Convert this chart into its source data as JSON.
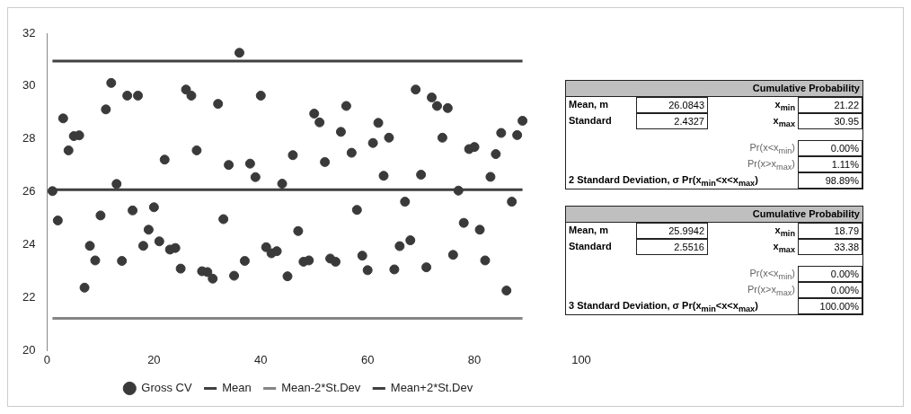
{
  "chart_data": {
    "type": "scatter",
    "x": [
      1,
      2,
      3,
      4,
      5,
      6,
      7,
      8,
      9,
      10,
      11,
      12,
      13,
      14,
      15,
      16,
      17,
      18,
      19,
      20,
      21,
      22,
      23,
      24,
      25,
      26,
      27,
      28,
      29,
      30,
      31,
      32,
      33,
      34,
      35,
      36,
      37,
      38,
      39,
      40,
      41,
      42,
      43,
      44,
      45,
      46,
      47,
      48,
      49,
      50,
      51,
      52,
      53,
      54,
      55,
      56,
      57,
      58,
      59,
      60,
      61,
      62,
      63,
      64,
      65,
      66,
      67,
      68,
      69,
      70,
      71,
      72,
      73,
      74,
      75,
      76,
      77,
      78,
      79,
      80,
      81,
      82,
      83,
      84,
      85,
      86,
      87,
      88,
      89
    ],
    "series": [
      {
        "name": "Gross CV",
        "marker": "circle",
        "color": "#3a3a3a",
        "values": [
          26.03,
          24.92,
          28.78,
          27.57,
          28.11,
          28.14,
          22.38,
          23.96,
          23.41,
          25.11,
          29.12,
          30.12,
          26.3,
          23.39,
          29.64,
          25.3,
          29.64,
          23.96,
          24.57,
          25.42,
          24.13,
          27.22,
          23.82,
          23.88,
          23.1,
          29.87,
          29.64,
          27.57,
          23.0,
          22.97,
          22.72,
          29.33,
          24.97,
          27.02,
          22.83,
          31.26,
          23.39,
          27.07,
          26.56,
          29.64,
          23.91,
          23.68,
          23.76,
          26.31,
          22.81,
          27.39,
          24.52,
          23.36,
          23.41,
          28.96,
          28.63,
          27.13,
          23.48,
          23.36,
          28.27,
          29.25,
          27.48,
          25.32,
          23.59,
          23.04,
          27.85,
          28.61,
          26.61,
          28.05,
          23.07,
          23.95,
          25.63,
          24.17,
          29.87,
          26.65,
          23.15,
          29.57,
          29.25,
          28.05,
          29.17,
          23.62,
          26.05,
          24.83,
          27.62,
          27.7,
          24.57,
          23.41,
          26.57,
          27.43,
          28.23,
          22.27,
          25.63,
          28.15,
          28.69
        ]
      },
      {
        "name": "Mean",
        "type": "line",
        "marker": "none",
        "color": "#404040",
        "values": [
          26.0843,
          26.0843,
          26.0843,
          26.0843,
          26.0843,
          26.0843,
          26.0843,
          26.0843,
          26.0843,
          26.0843,
          26.0843,
          26.0843,
          26.0843,
          26.0843,
          26.0843,
          26.0843,
          26.0843,
          26.0843,
          26.0843,
          26.0843,
          26.0843,
          26.0843,
          26.0843,
          26.0843,
          26.0843,
          26.0843,
          26.0843,
          26.0843,
          26.0843,
          26.0843,
          26.0843,
          26.0843,
          26.0843,
          26.0843,
          26.0843,
          26.0843,
          26.0843,
          26.0843,
          26.0843,
          26.0843,
          26.0843,
          26.0843,
          26.0843,
          26.0843,
          26.0843,
          26.0843,
          26.0843,
          26.0843,
          26.0843,
          26.0843,
          26.0843,
          26.0843,
          26.0843,
          26.0843,
          26.0843,
          26.0843,
          26.0843,
          26.0843,
          26.0843,
          26.0843,
          26.0843,
          26.0843,
          26.0843,
          26.0843,
          26.0843,
          26.0843,
          26.0843,
          26.0843,
          26.0843,
          26.0843,
          26.0843,
          26.0843,
          26.0843,
          26.0843,
          26.0843,
          26.0843,
          26.0843,
          26.0843,
          26.0843,
          26.0843,
          26.0843,
          26.0843,
          26.0843,
          26.0843,
          26.0843,
          26.0843,
          26.0843,
          26.0843,
          26.0843
        ]
      },
      {
        "name": "Mean-2*St.Dev",
        "type": "line",
        "marker": "none",
        "color": "#858585",
        "values": [
          21.22,
          21.22,
          21.22,
          21.22,
          21.22,
          21.22,
          21.22,
          21.22,
          21.22,
          21.22,
          21.22,
          21.22,
          21.22,
          21.22,
          21.22,
          21.22,
          21.22,
          21.22,
          21.22,
          21.22,
          21.22,
          21.22,
          21.22,
          21.22,
          21.22,
          21.22,
          21.22,
          21.22,
          21.22,
          21.22,
          21.22,
          21.22,
          21.22,
          21.22,
          21.22,
          21.22,
          21.22,
          21.22,
          21.22,
          21.22,
          21.22,
          21.22,
          21.22,
          21.22,
          21.22,
          21.22,
          21.22,
          21.22,
          21.22,
          21.22,
          21.22,
          21.22,
          21.22,
          21.22,
          21.22,
          21.22,
          21.22,
          21.22,
          21.22,
          21.22,
          21.22,
          21.22,
          21.22,
          21.22,
          21.22,
          21.22,
          21.22,
          21.22,
          21.22,
          21.22,
          21.22,
          21.22,
          21.22,
          21.22,
          21.22,
          21.22,
          21.22,
          21.22,
          21.22,
          21.22,
          21.22,
          21.22,
          21.22,
          21.22,
          21.22,
          21.22,
          21.22,
          21.22,
          21.22
        ]
      },
      {
        "name": "Mean+2*St.Dev",
        "type": "line",
        "marker": "none",
        "color": "#404040",
        "values": [
          30.95,
          30.95,
          30.95,
          30.95,
          30.95,
          30.95,
          30.95,
          30.95,
          30.95,
          30.95,
          30.95,
          30.95,
          30.95,
          30.95,
          30.95,
          30.95,
          30.95,
          30.95,
          30.95,
          30.95,
          30.95,
          30.95,
          30.95,
          30.95,
          30.95,
          30.95,
          30.95,
          30.95,
          30.95,
          30.95,
          30.95,
          30.95,
          30.95,
          30.95,
          30.95,
          30.95,
          30.95,
          30.95,
          30.95,
          30.95,
          30.95,
          30.95,
          30.95,
          30.95,
          30.95,
          30.95,
          30.95,
          30.95,
          30.95,
          30.95,
          30.95,
          30.95,
          30.95,
          30.95,
          30.95,
          30.95,
          30.95,
          30.95,
          30.95,
          30.95,
          30.95,
          30.95,
          30.95,
          30.95,
          30.95,
          30.95,
          30.95,
          30.95,
          30.95,
          30.95,
          30.95,
          30.95,
          30.95,
          30.95,
          30.95,
          30.95,
          30.95,
          30.95,
          30.95,
          30.95,
          30.95,
          30.95,
          30.95,
          30.95,
          30.95,
          30.95,
          30.95,
          30.95,
          30.95
        ]
      }
    ],
    "xlim": [
      0,
      100
    ],
    "xticks": [
      0,
      20,
      40,
      60,
      80,
      100
    ],
    "ylim": [
      20,
      32
    ],
    "yticks": [
      20,
      22,
      24,
      26,
      28,
      30,
      32
    ],
    "grid": false,
    "legend": "bottom",
    "line_style": "solid",
    "annotations": [
      "Cumulative Probability",
      "Mean, m",
      "26.0843",
      "x$_{min}$",
      "21.22",
      "Standard",
      "2.4327",
      "x$_{max}$",
      "30.95",
      "Pr(x<x$_{min}$)",
      "0.00%",
      "Pr(x>x$_{max}$)",
      "1.11%",
      "2 Standard Deviation, σ Pr(x$_{min}$<x<x$_{max}$)",
      "98.89%",
      "Cumulative Probability",
      "Mean, m",
      "25.9942",
      "x$_{min}$",
      "18.79",
      "Standard",
      "2.5516",
      "x$_{max}$",
      "33.38",
      "Pr(x<x$_{min}$)",
      "0.00%",
      "Pr(x>x$_{max}$)",
      "0.00%",
      "3 Standard Deviation, σ Pr(x$_{min}$<x<x$_{max}$)",
      "100.00%"
    ]
  }
}
